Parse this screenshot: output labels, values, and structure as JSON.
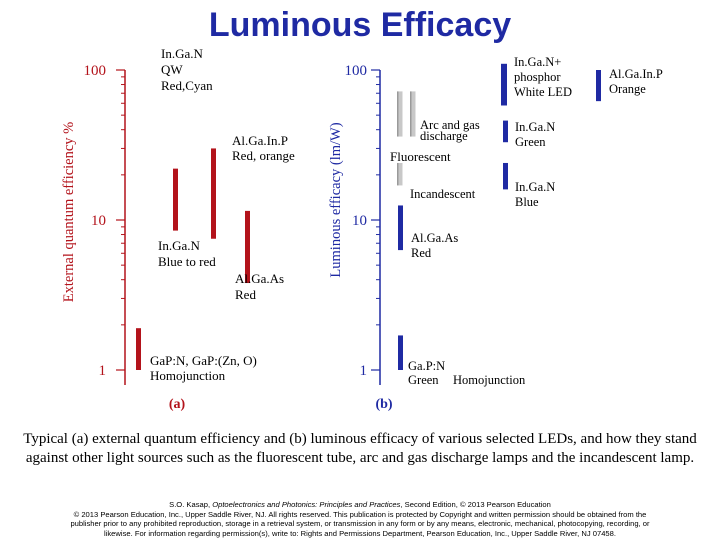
{
  "title": "Luminous Efficacy",
  "caption": "Typical (a) external quantum efficiency and (b) luminous efficacy of various selected LEDs, and how they stand against other light sources such as the fluorescent tube, arc and gas discharge lamps and the incandescent lamp.",
  "credit": {
    "line1_pre": "S.O. Kasap, ",
    "line1_book": "Optoelectronics and Photonics: Principles and Practices",
    "line1_post": ", Second Edition, © 2013 Pearson Education",
    "line2": "© 2013 Pearson Education, Inc., Upper Saddle River, NJ. All rights reserved. This publication is protected by Copyright and written permission should be obtained from the",
    "line3": "publisher prior to any prohibited reproduction, storage in a retrieval system, or transmission in any form or by any means, electronic, mechanical, photocopying, recording, or",
    "line4": "likewise. For information regarding permission(s), write to: Rights and Permissions Department, Pearson Education, Inc., Upper Saddle River, NJ 07458."
  },
  "colors": {
    "panel_a": "#b3131b",
    "panel_b": "#1f2aa3",
    "gray": "#9a9a9a",
    "title": "#1f2aa3"
  },
  "chart_data": [
    {
      "type": "bar",
      "panel": "(a)",
      "ylabel": "External quantum efficiency %",
      "yscale": "log",
      "ylim": [
        1,
        100
      ],
      "yticks": [
        "1",
        "10",
        "100"
      ],
      "series": [
        {
          "label": [
            "In.Ga.N",
            "QW",
            "Red,Cyan"
          ],
          "low": 17.5,
          "high": 21.5
        },
        {
          "label": [
            "In.Ga.N",
            "Blue to red"
          ],
          "low": 8.5,
          "high": 22
        },
        {
          "label": [
            "Al.Ga.In.P",
            "Red, orange"
          ],
          "low": 7.5,
          "high": 30
        },
        {
          "label": [
            "Al.Ga.As",
            "Red"
          ],
          "low": 3.8,
          "high": 11.5
        },
        {
          "label": [
            "GaP:N, GaP:(Zn, O)",
            "Homojunction"
          ],
          "low": 1,
          "high": 1.9
        }
      ]
    },
    {
      "type": "bar",
      "panel": "(b)",
      "ylabel": "Luminous efficacy (lm/W)",
      "yscale": "log",
      "ylim": [
        1,
        100
      ],
      "yticks": [
        "1",
        "10",
        "100"
      ],
      "series": [
        {
          "label": [
            "In.Ga.N+",
            "phosphor",
            "White LED"
          ],
          "low": 58,
          "high": 110,
          "kind": "led"
        },
        {
          "label": [
            "Al.Ga.In.P",
            "Orange"
          ],
          "low": 62,
          "high": 100,
          "kind": "led"
        },
        {
          "label": [
            "Arc and gas",
            "discharge"
          ],
          "low": 36,
          "high": 72,
          "kind": "source"
        },
        {
          "label": [
            "Fluorescent"
          ],
          "low": 36,
          "high": 72,
          "kind": "source"
        },
        {
          "label": [
            "In.Ga.N",
            "Green"
          ],
          "low": 33,
          "high": 46,
          "kind": "led"
        },
        {
          "label": [
            "Incandescent"
          ],
          "low": 17,
          "high": 24,
          "kind": "source"
        },
        {
          "label": [
            "In.Ga.N",
            "Blue"
          ],
          "low": 16,
          "high": 24,
          "kind": "led"
        },
        {
          "label": [
            "Al.Ga.As",
            "Red"
          ],
          "low": 6.3,
          "high": 12.5,
          "kind": "led"
        },
        {
          "label": [
            "Ga.P:N",
            "Green",
            "Homojunction"
          ],
          "low": 1,
          "high": 1.7,
          "kind": "led"
        }
      ]
    }
  ]
}
